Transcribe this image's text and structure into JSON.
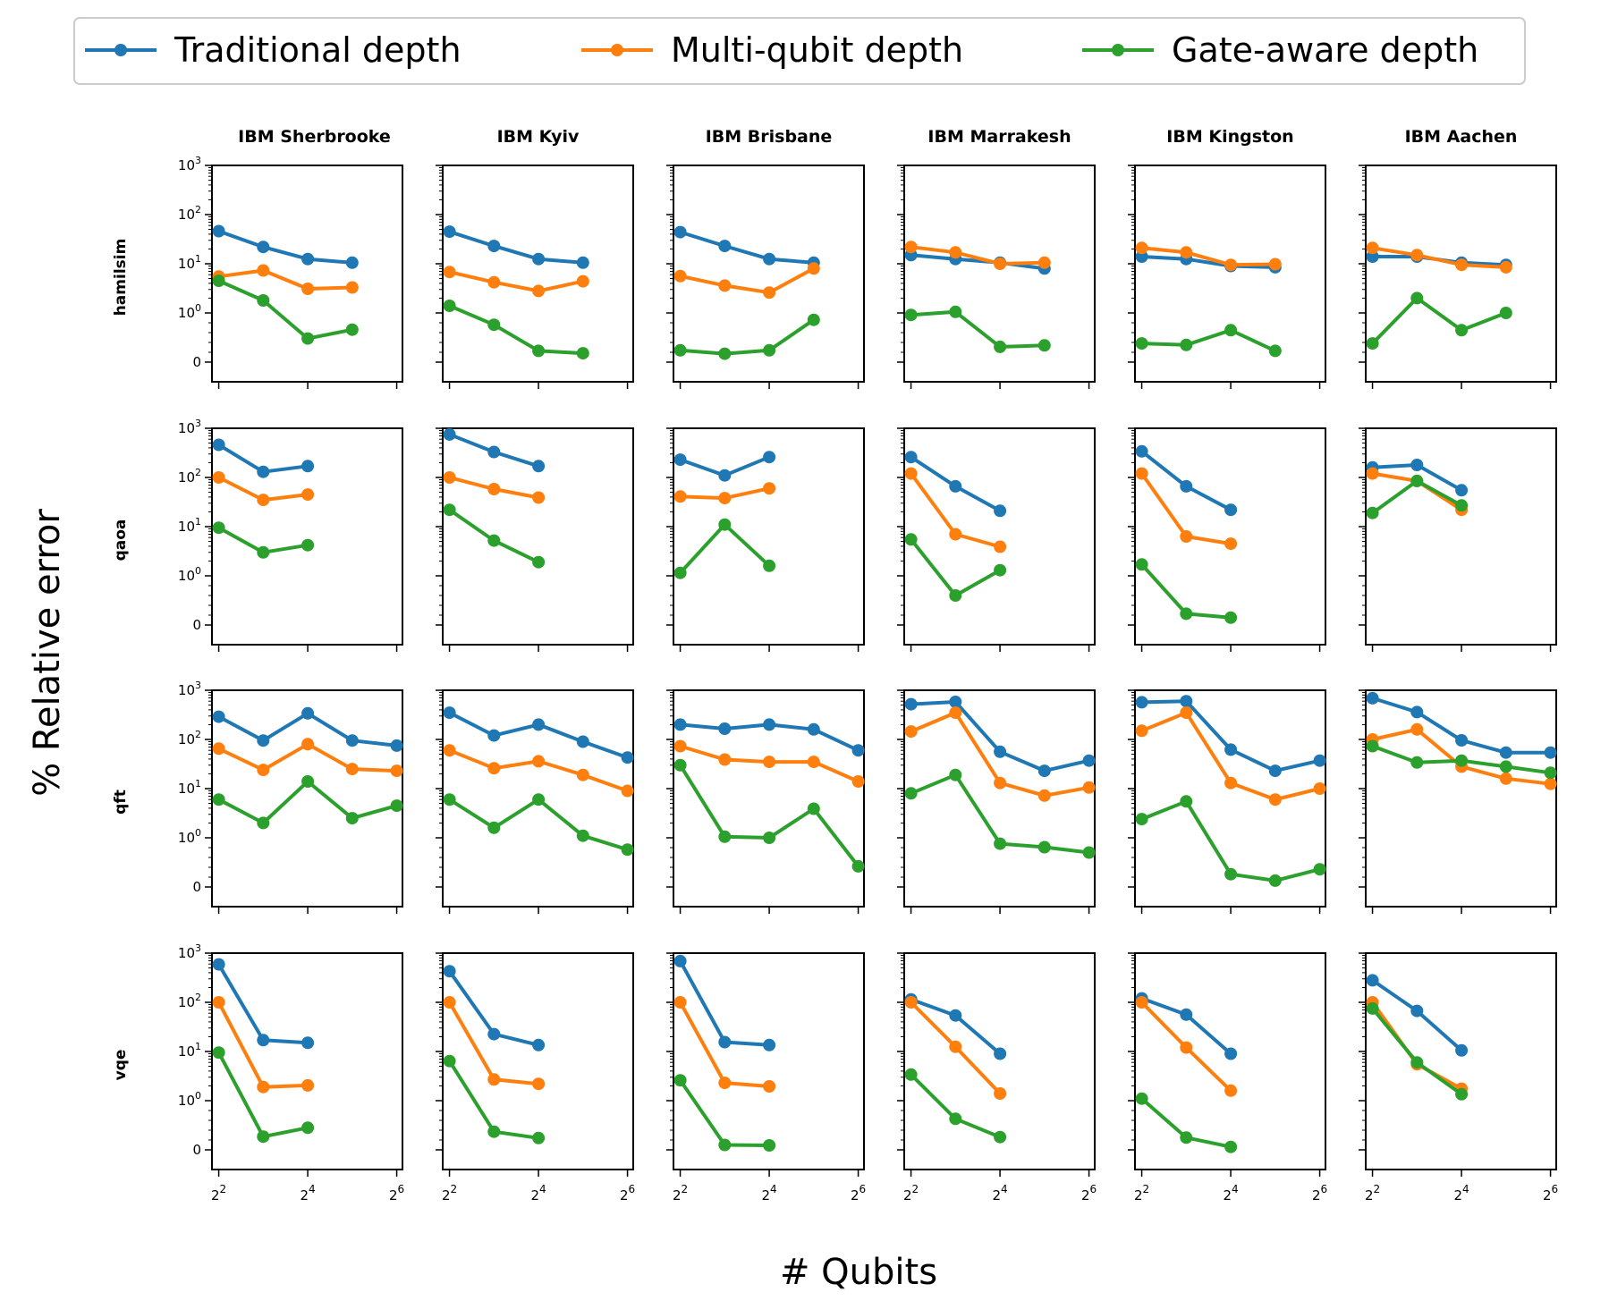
{
  "legend": [
    {
      "label": "Traditional depth",
      "color": "#1f77b4"
    },
    {
      "label": "Multi-qubit depth",
      "color": "#ff7f0e"
    },
    {
      "label": "Gate-aware depth",
      "color": "#2ca02c"
    }
  ],
  "xlabel": "# Qubits",
  "ylabel": "% Relative error",
  "columns": [
    "IBM Sherbrooke",
    "IBM Kyiv",
    "IBM Brisbane",
    "IBM Marrakesh",
    "IBM Kingston",
    "IBM Aachen"
  ],
  "rows": [
    "hamilsim",
    "qaoa",
    "qft",
    "vqe"
  ],
  "chart_data": {
    "type": "line",
    "layout": "grid 4 rows x 6 columns, shared axes",
    "x_scale": "log2",
    "x_ticks": [
      4,
      16,
      64
    ],
    "x_tick_labels": [
      {
        "base": "2",
        "exp": "2"
      },
      {
        "base": "2",
        "exp": "4"
      },
      {
        "base": "2",
        "exp": "6"
      }
    ],
    "y_scale": "symlog",
    "y_ticks": [
      0,
      1,
      10,
      100,
      1000
    ],
    "y_tick_labels": [
      {
        "base": "0",
        "exp": ""
      },
      {
        "base": "10",
        "exp": "0"
      },
      {
        "base": "10",
        "exp": "1"
      },
      {
        "base": "10",
        "exp": "2"
      },
      {
        "base": "10",
        "exp": "3"
      }
    ],
    "ylim": [
      0,
      1000
    ],
    "xlim": [
      4,
      64
    ],
    "panels": {
      "hamilsim": {
        "IBM Sherbrooke": {
          "x": [
            4,
            8,
            16,
            32
          ],
          "Traditional depth": [
            46,
            22,
            12.5,
            10.5
          ],
          "Multi-qubit depth": [
            5.5,
            7.3,
            3.1,
            3.3
          ],
          "Gate-aware depth": [
            4.5,
            1.8,
            0.48,
            0.66
          ]
        },
        "IBM Kyiv": {
          "x": [
            4,
            8,
            16,
            32
          ],
          "Traditional depth": [
            45,
            23,
            12.5,
            10.5
          ],
          "Multi-qubit depth": [
            6.8,
            4.2,
            2.8,
            4.4
          ],
          "Gate-aware depth": [
            1.4,
            0.76,
            0.23,
            0.18
          ]
        },
        "IBM Brisbane": {
          "x": [
            4,
            8,
            16,
            32
          ],
          "Traditional depth": [
            44,
            23,
            12.5,
            10.5
          ],
          "Multi-qubit depth": [
            5.6,
            3.6,
            2.6,
            8.0
          ],
          "Gate-aware depth": [
            0.24,
            0.17,
            0.24,
            0.86
          ]
        },
        "IBM Marrakesh": {
          "x": [
            4,
            8,
            16,
            32
          ],
          "Traditional depth": [
            15,
            12.5,
            10.5,
            8.0
          ],
          "Multi-qubit depth": [
            22,
            17,
            10,
            10.5
          ],
          "Gate-aware depth": [
            0.96,
            1.05,
            0.31,
            0.34
          ]
        },
        "IBM Kingston": {
          "x": [
            4,
            8,
            16,
            32
          ],
          "Traditional depth": [
            14,
            12.5,
            9.0,
            8.5
          ],
          "Multi-qubit depth": [
            21,
            17,
            9.5,
            9.8
          ],
          "Gate-aware depth": [
            0.38,
            0.35,
            0.65,
            0.23
          ]
        },
        "IBM Aachen": {
          "x": [
            4,
            8,
            16,
            32
          ],
          "Traditional depth": [
            14,
            14,
            10.5,
            9.5
          ],
          "Multi-qubit depth": [
            21,
            15,
            9.5,
            8.5
          ],
          "Gate-aware depth": [
            0.38,
            2.0,
            0.65,
            1.0
          ]
        }
      },
      "qaoa": {
        "IBM Sherbrooke": {
          "x": [
            4,
            8,
            16
          ],
          "Traditional depth": [
            460,
            130,
            170
          ],
          "Multi-qubit depth": [
            100,
            35,
            45
          ],
          "Gate-aware depth": [
            9.5,
            3.0,
            4.2
          ]
        },
        "IBM Kyiv": {
          "x": [
            4,
            8,
            16
          ],
          "Traditional depth": [
            750,
            330,
            170
          ],
          "Multi-qubit depth": [
            100,
            58,
            39
          ],
          "Gate-aware depth": [
            22,
            5.2,
            1.9
          ]
        },
        "IBM Brisbane": {
          "x": [
            4,
            8,
            16
          ],
          "Traditional depth": [
            230,
            110,
            260
          ],
          "Multi-qubit depth": [
            41,
            38,
            60
          ],
          "Gate-aware depth": [
            1.15,
            11.0,
            1.6
          ]
        },
        "IBM Marrakesh": {
          "x": [
            4,
            8,
            16
          ],
          "Traditional depth": [
            260,
            66,
            21
          ],
          "Multi-qubit depth": [
            120,
            7.0,
            3.9
          ],
          "Gate-aware depth": [
            5.5,
            0.6,
            1.3
          ]
        },
        "IBM Kingston": {
          "x": [
            4,
            8,
            16
          ],
          "Traditional depth": [
            340,
            66,
            22
          ],
          "Multi-qubit depth": [
            120,
            6.3,
            4.5
          ],
          "Gate-aware depth": [
            1.7,
            0.23,
            0.15
          ]
        },
        "IBM Aachen": {
          "x": [
            4,
            8,
            16
          ],
          "Traditional depth": [
            160,
            180,
            55
          ],
          "Multi-qubit depth": [
            120,
            85,
            22
          ],
          "Gate-aware depth": [
            19,
            85,
            27
          ]
        }
      },
      "qft": {
        "IBM Sherbrooke": {
          "x": [
            4,
            8,
            16,
            32,
            64
          ],
          "Traditional depth": [
            290,
            95,
            340,
            95,
            75
          ],
          "Multi-qubit depth": [
            65,
            24,
            80,
            25,
            23
          ],
          "Gate-aware depth": [
            6.0,
            2.0,
            14,
            2.5,
            4.5
          ]
        },
        "IBM Kyiv": {
          "x": [
            4,
            8,
            16,
            32,
            64
          ],
          "Traditional depth": [
            350,
            120,
            200,
            90,
            43
          ],
          "Multi-qubit depth": [
            60,
            26,
            36,
            19,
            9.0
          ],
          "Gate-aware depth": [
            6.0,
            1.6,
            6.0,
            1.1,
            0.76
          ]
        },
        "IBM Brisbane": {
          "x": [
            4,
            8,
            16,
            32,
            64
          ],
          "Traditional depth": [
            200,
            165,
            200,
            160,
            60
          ],
          "Multi-qubit depth": [
            73,
            39,
            35,
            35,
            14
          ],
          "Gate-aware depth": [
            30,
            1.05,
            1.0,
            3.9,
            0.42
          ]
        },
        "IBM Marrakesh": {
          "x": [
            4,
            8,
            16,
            32,
            64
          ],
          "Traditional depth": [
            520,
            580,
            56,
            23,
            37
          ],
          "Multi-qubit depth": [
            145,
            350,
            13,
            7.2,
            10.5
          ],
          "Gate-aware depth": [
            8.0,
            19,
            0.88,
            0.81,
            0.7
          ]
        },
        "IBM Kingston": {
          "x": [
            4,
            8,
            16,
            32,
            64
          ],
          "Traditional depth": [
            570,
            600,
            62,
            23,
            37
          ],
          "Multi-qubit depth": [
            150,
            350,
            13,
            6.0,
            10
          ],
          "Gate-aware depth": [
            2.4,
            5.5,
            0.26,
            0.13,
            0.36
          ]
        },
        "IBM Aachen": {
          "x": [
            4,
            8,
            16,
            32,
            64
          ],
          "Traditional depth": [
            690,
            360,
            96,
            54,
            54
          ],
          "Multi-qubit depth": [
            100,
            160,
            28,
            16,
            12.5
          ],
          "Gate-aware depth": [
            73,
            34,
            37,
            28,
            21
          ]
        }
      },
      "vqe": {
        "IBM Sherbrooke": {
          "x": [
            4,
            8,
            16
          ],
          "Traditional depth": [
            590,
            17,
            15
          ],
          "Multi-qubit depth": [
            100,
            1.9,
            2.05
          ],
          "Gate-aware depth": [
            9.5,
            0.27,
            0.45
          ]
        },
        "IBM Kyiv": {
          "x": [
            4,
            8,
            16
          ],
          "Traditional depth": [
            430,
            22.5,
            13.5
          ],
          "Multi-qubit depth": [
            100,
            2.7,
            2.2
          ],
          "Gate-aware depth": [
            6.4,
            0.37,
            0.24
          ]
        },
        "IBM Brisbane": {
          "x": [
            4,
            8,
            16
          ],
          "Traditional depth": [
            690,
            15.5,
            13.5
          ],
          "Multi-qubit depth": [
            100,
            2.3,
            1.95
          ],
          "Gate-aware depth": [
            2.6,
            0.1,
            0.09
          ]
        },
        "IBM Marrakesh": {
          "x": [
            4,
            8,
            16
          ],
          "Traditional depth": [
            115,
            54,
            9.0
          ],
          "Multi-qubit depth": [
            100,
            12.5,
            1.4
          ],
          "Gate-aware depth": [
            3.4,
            0.63,
            0.26
          ]
        },
        "IBM Kingston": {
          "x": [
            4,
            8,
            16
          ],
          "Traditional depth": [
            120,
            56,
            9.0
          ],
          "Multi-qubit depth": [
            100,
            12,
            1.6
          ],
          "Gate-aware depth": [
            1.1,
            0.25,
            0.06
          ]
        },
        "IBM Aachen": {
          "x": [
            4,
            8,
            16
          ],
          "Traditional depth": [
            280,
            67,
            10.5
          ],
          "Multi-qubit depth": [
            100,
            5.5,
            1.75
          ],
          "Gate-aware depth": [
            75,
            6.0,
            1.35
          ]
        }
      }
    }
  }
}
